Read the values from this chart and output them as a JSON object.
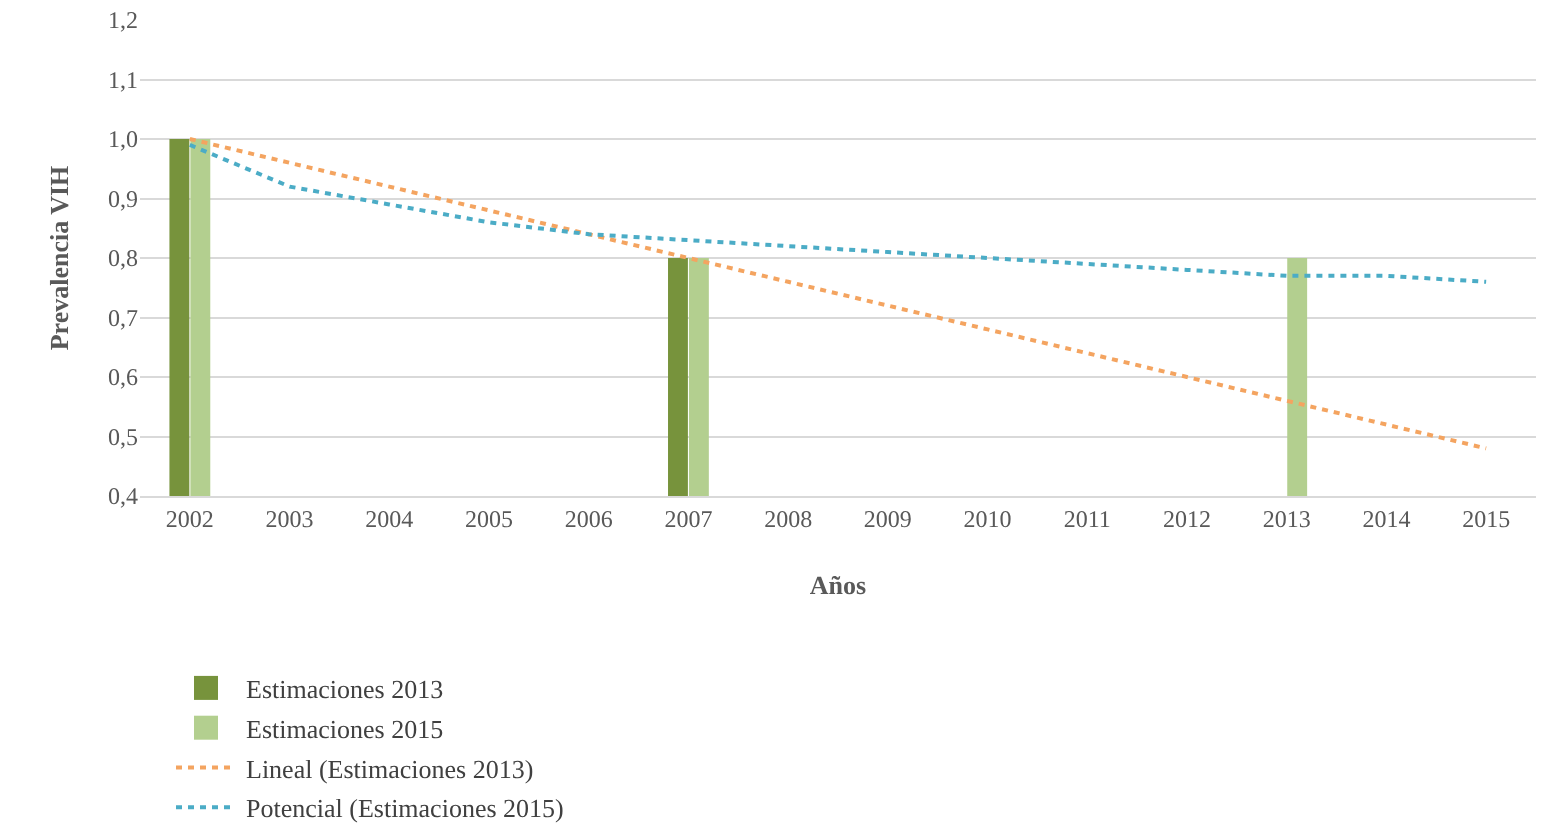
{
  "chart_data": {
    "type": "bar",
    "xlabel": "Años",
    "ylabel": "Prevalencia VIH",
    "categories": [
      "2002",
      "2003",
      "2004",
      "2005",
      "2006",
      "2007",
      "2008",
      "2009",
      "2010",
      "2011",
      "2012",
      "2013",
      "2014",
      "2015"
    ],
    "series": [
      {
        "name": "Estimaciones 2013",
        "color": "#77933c",
        "values": [
          1.0,
          null,
          null,
          null,
          null,
          0.8,
          null,
          null,
          null,
          null,
          null,
          null,
          null,
          null
        ]
      },
      {
        "name": "Estimaciones 2015",
        "color": "#b3cf8f",
        "values": [
          1.0,
          null,
          null,
          null,
          null,
          0.8,
          null,
          null,
          null,
          null,
          null,
          0.8,
          null,
          null
        ]
      },
      {
        "name": "Lineal (Estimaciones 2013)",
        "type": "line",
        "line_style": "dotted",
        "color": "#f4a460",
        "values": [
          1.0,
          0.96,
          0.92,
          0.88,
          0.84,
          0.8,
          0.76,
          0.72,
          0.68,
          0.64,
          0.6,
          0.56,
          0.52,
          0.48
        ]
      },
      {
        "name": "Potencial (Estimaciones 2015)",
        "type": "line",
        "line_style": "dotted",
        "color": "#4bacc6",
        "values": [
          0.99,
          0.92,
          0.89,
          0.86,
          0.84,
          0.83,
          0.82,
          0.81,
          0.8,
          0.79,
          0.78,
          0.77,
          0.77,
          0.76
        ]
      }
    ],
    "ylim": [
      0.4,
      1.2
    ],
    "yticks": [
      {
        "value": 0.4,
        "label": "0,4"
      },
      {
        "value": 0.5,
        "label": "0,5"
      },
      {
        "value": 0.6,
        "label": "0,6"
      },
      {
        "value": 0.7,
        "label": "0,7"
      },
      {
        "value": 0.8,
        "label": "0,8"
      },
      {
        "value": 0.9,
        "label": "0,9"
      },
      {
        "value": 1.0,
        "label": "1,0"
      },
      {
        "value": 1.1,
        "label": "1,1"
      },
      {
        "value": 1.2,
        "label": "1,2"
      }
    ],
    "grid": "y",
    "legend": "bottom",
    "marker": "none"
  }
}
